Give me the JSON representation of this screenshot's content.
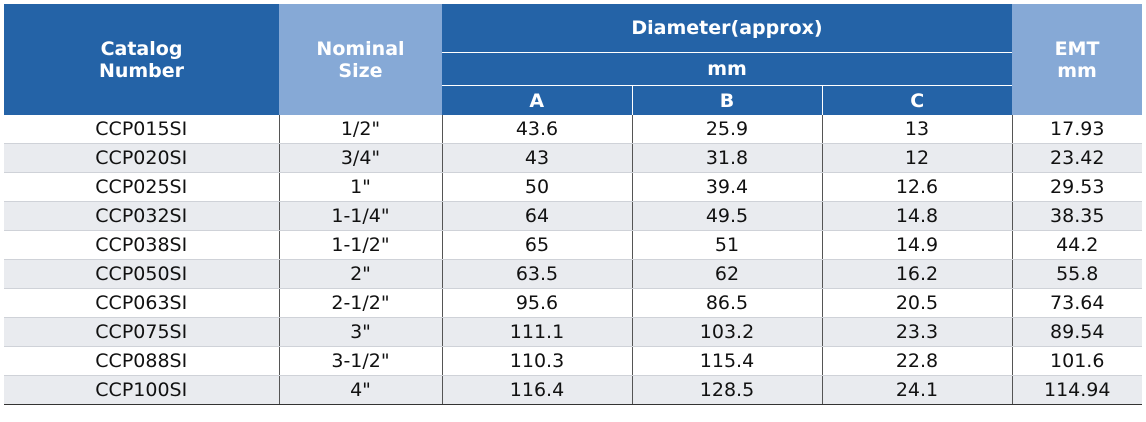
{
  "header": {
    "catalog_number": [
      "Catalog",
      "Number"
    ],
    "nominal_size": [
      "Nominal",
      "Size"
    ],
    "diameter": "Diameter(approx)",
    "diameter_unit": "mm",
    "col_a": "A",
    "col_b": "B",
    "col_c": "C",
    "emt": [
      "EMT",
      "mm"
    ]
  },
  "colors": {
    "header_dark": "#2463a7",
    "header_light": "#86a9d6",
    "row_stripe": "#e9ebef"
  },
  "rows": [
    [
      "CCP015SI",
      "1/2\"",
      "43.6",
      "25.9",
      "13",
      "17.93"
    ],
    [
      "CCP020SI",
      "3/4\"",
      "43",
      "31.8",
      "12",
      "23.42"
    ],
    [
      "CCP025SI",
      "1\"",
      "50",
      "39.4",
      "12.6",
      "29.53"
    ],
    [
      "CCP032SI",
      "1-1/4\"",
      "64",
      "49.5",
      "14.8",
      "38.35"
    ],
    [
      "CCP038SI",
      "1-1/2\"",
      "65",
      "51",
      "14.9",
      "44.2"
    ],
    [
      "CCP050SI",
      "2\"",
      "63.5",
      "62",
      "16.2",
      "55.8"
    ],
    [
      "CCP063SI",
      "2-1/2\"",
      "95.6",
      "86.5",
      "20.5",
      "73.64"
    ],
    [
      "CCP075SI",
      "3\"",
      "111.1",
      "103.2",
      "23.3",
      "89.54"
    ],
    [
      "CCP088SI",
      "3-1/2\"",
      "110.3",
      "115.4",
      "22.8",
      "101.6"
    ],
    [
      "CCP100SI",
      "4\"",
      "116.4",
      "128.5",
      "24.1",
      "114.94"
    ]
  ]
}
